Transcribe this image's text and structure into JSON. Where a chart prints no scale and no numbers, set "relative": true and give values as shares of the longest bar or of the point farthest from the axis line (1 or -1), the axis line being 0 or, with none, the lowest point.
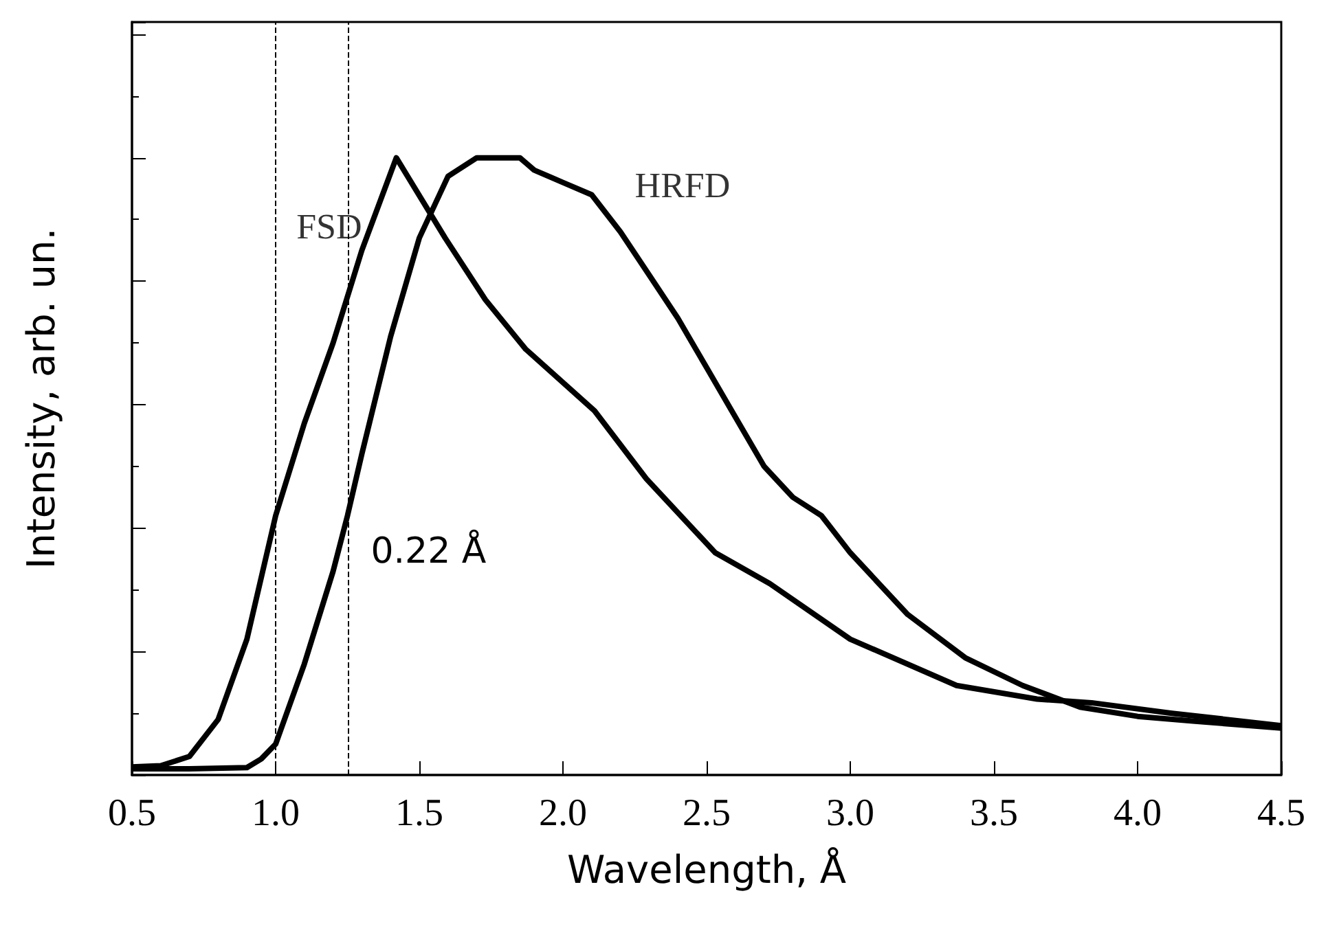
{
  "chart_data": {
    "type": "line",
    "relative": true,
    "xlabel": "Wavelength, Å",
    "ylabel": "Intensity, arb. un.",
    "xlim": [
      0.5,
      4.5
    ],
    "xticks": [
      0.5,
      {
        "value": 1,
        "label": "1.0"
      },
      1.5,
      {
        "value": 2,
        "label": "2.0"
      },
      2.5,
      {
        "value": 3,
        "label": "3.0"
      },
      3.5,
      {
        "value": 4,
        "label": "4.0"
      },
      4.5
    ],
    "grid": false,
    "legend": false,
    "line_style": "solid",
    "series": [
      {
        "name": "FSD",
        "color": "#000000",
        "x": [
          0.5,
          0.6,
          0.7,
          0.8,
          0.9,
          1.0,
          1.1,
          1.2,
          1.3,
          1.42,
          1.59,
          1.73,
          1.87,
          2.11,
          2.29,
          2.53,
          2.72,
          3.0,
          3.37,
          3.65,
          3.84,
          4.12,
          4.5
        ],
        "values": [
          0.013,
          0.015,
          0.03,
          0.09,
          0.22,
          0.42,
          0.57,
          0.7,
          0.85,
          1.0,
          0.87,
          0.77,
          0.69,
          0.59,
          0.48,
          0.36,
          0.31,
          0.22,
          0.145,
          0.123,
          0.117,
          0.1,
          0.08
        ]
      },
      {
        "name": "HRFD",
        "color": "#000000",
        "x": [
          0.5,
          0.7,
          0.9,
          0.95,
          1.0,
          1.1,
          1.2,
          1.25,
          1.3,
          1.4,
          1.5,
          1.6,
          1.7,
          1.85,
          1.9,
          2.0,
          2.1,
          2.2,
          2.3,
          2.4,
          2.5,
          2.6,
          2.7,
          2.8,
          2.9,
          3.0,
          3.2,
          3.4,
          3.6,
          3.8,
          4.0,
          4.2,
          4.5
        ],
        "values": [
          0.01,
          0.01,
          0.012,
          0.026,
          0.05,
          0.18,
          0.33,
          0.42,
          0.52,
          0.71,
          0.87,
          0.97,
          1.0,
          1.0,
          0.98,
          0.96,
          0.94,
          0.88,
          0.81,
          0.74,
          0.66,
          0.58,
          0.5,
          0.45,
          0.42,
          0.36,
          0.26,
          0.19,
          0.145,
          0.11,
          0.095,
          0.087,
          0.076
        ]
      }
    ],
    "ref_lines": [
      {
        "axis": "x",
        "value": 1.0,
        "line_style": "dashed"
      },
      {
        "axis": "x",
        "value": 1.25,
        "line_style": "dashed"
      }
    ],
    "annotations": [
      {
        "text": "0.22 Å",
        "x": 1.25,
        "y": 0.42
      }
    ]
  }
}
